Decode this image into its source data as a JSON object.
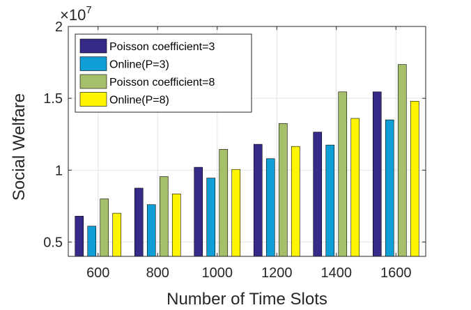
{
  "chart_data": {
    "type": "bar",
    "title": "",
    "xlabel": "Number of Time Slots",
    "ylabel": "Social Welfare",
    "y_multiplier": {
      "base": "×10",
      "exponent": "7"
    },
    "categories": [
      "600",
      "800",
      "1000",
      "1200",
      "1400",
      "1600"
    ],
    "ylim": [
      0.4,
      2.0
    ],
    "yticks": [
      0.5,
      1,
      1.5,
      2
    ],
    "ytick_labels": [
      "0.5",
      "1",
      "1.5",
      "2"
    ],
    "grid": true,
    "legend_position": "top-left",
    "series": [
      {
        "name": "Poisson coefficient=3",
        "color": "#352A87",
        "values": [
          0.68,
          0.875,
          1.02,
          1.18,
          1.265,
          1.545
        ]
      },
      {
        "name": "Online(P=3)",
        "color": "#0F9FD6",
        "values": [
          0.61,
          0.76,
          0.945,
          1.08,
          1.175,
          1.35
        ]
      },
      {
        "name": "Poisson coefficient=8",
        "color": "#A5BF6A",
        "values": [
          0.8,
          0.955,
          1.145,
          1.325,
          1.545,
          1.735
        ]
      },
      {
        "name": "Online(P=8)",
        "color": "#FFF500",
        "values": [
          0.7,
          0.835,
          1.005,
          1.165,
          1.36,
          1.48
        ]
      }
    ]
  }
}
